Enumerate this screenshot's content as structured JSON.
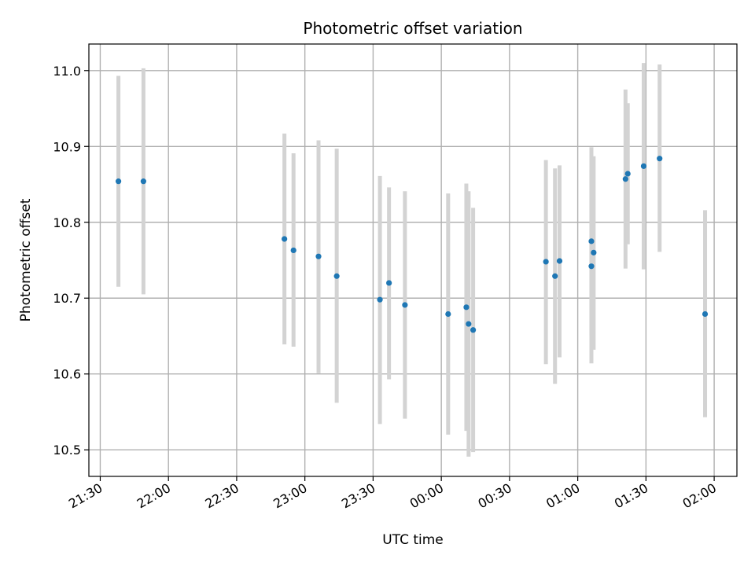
{
  "chart_data": {
    "type": "scatter",
    "title": "Photometric offset variation",
    "xlabel": "UTC time",
    "ylabel": "Photometric offset",
    "x_axis_kind": "time",
    "xlim": [
      "21:25",
      "02:10"
    ],
    "ylim": [
      10.465,
      11.035
    ],
    "xticks": [
      "21:30",
      "22:00",
      "22:30",
      "23:00",
      "23:30",
      "00:00",
      "00:30",
      "01:00",
      "01:30",
      "02:00"
    ],
    "yticks": [
      10.5,
      10.6,
      10.7,
      10.8,
      10.9,
      11.0
    ],
    "grid": true,
    "colors": {
      "points": "#1f77b4",
      "error_bars": "#d3d3d3"
    },
    "points": [
      {
        "x": "21:38",
        "y": 10.854,
        "ylow": 10.715,
        "yhigh": 10.993
      },
      {
        "x": "21:49",
        "y": 10.854,
        "ylow": 10.705,
        "yhigh": 11.003
      },
      {
        "x": "22:51",
        "y": 10.778,
        "ylow": 10.639,
        "yhigh": 10.917
      },
      {
        "x": "22:55",
        "y": 10.763,
        "ylow": 10.636,
        "yhigh": 10.891
      },
      {
        "x": "23:06",
        "y": 10.755,
        "ylow": 10.601,
        "yhigh": 10.908
      },
      {
        "x": "23:14",
        "y": 10.729,
        "ylow": 10.562,
        "yhigh": 10.897
      },
      {
        "x": "23:33",
        "y": 10.698,
        "ylow": 10.534,
        "yhigh": 10.861
      },
      {
        "x": "23:37",
        "y": 10.72,
        "ylow": 10.593,
        "yhigh": 10.846
      },
      {
        "x": "23:44",
        "y": 10.691,
        "ylow": 10.541,
        "yhigh": 10.841
      },
      {
        "x": "00:03",
        "y": 10.679,
        "ylow": 10.52,
        "yhigh": 10.838
      },
      {
        "x": "00:11",
        "y": 10.688,
        "ylow": 10.525,
        "yhigh": 10.851
      },
      {
        "x": "00:12",
        "y": 10.666,
        "ylow": 10.491,
        "yhigh": 10.841
      },
      {
        "x": "00:14",
        "y": 10.658,
        "ylow": 10.497,
        "yhigh": 10.819
      },
      {
        "x": "00:46",
        "y": 10.748,
        "ylow": 10.613,
        "yhigh": 10.882
      },
      {
        "x": "00:50",
        "y": 10.729,
        "ylow": 10.587,
        "yhigh": 10.871
      },
      {
        "x": "00:52",
        "y": 10.749,
        "ylow": 10.622,
        "yhigh": 10.875
      },
      {
        "x": "01:06",
        "y": 10.775,
        "ylow": 10.651,
        "yhigh": 10.899
      },
      {
        "x": "01:06",
        "y": 10.742,
        "ylow": 10.614,
        "yhigh": 10.869
      },
      {
        "x": "01:07",
        "y": 10.76,
        "ylow": 10.632,
        "yhigh": 10.887
      },
      {
        "x": "01:21",
        "y": 10.857,
        "ylow": 10.739,
        "yhigh": 10.975
      },
      {
        "x": "01:22",
        "y": 10.864,
        "ylow": 10.771,
        "yhigh": 10.957
      },
      {
        "x": "01:29",
        "y": 10.874,
        "ylow": 10.738,
        "yhigh": 11.01
      },
      {
        "x": "01:36",
        "y": 10.884,
        "ylow": 10.761,
        "yhigh": 11.008
      },
      {
        "x": "01:56",
        "y": 10.679,
        "ylow": 10.543,
        "yhigh": 10.816
      }
    ]
  }
}
